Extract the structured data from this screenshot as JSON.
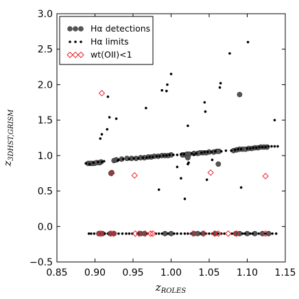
{
  "chart_data": {
    "type": "scatter",
    "xlabel": "z_ROLES",
    "ylabel": "z_3DHST,GRISM",
    "xlim": [
      0.85,
      1.15
    ],
    "ylim": [
      -0.5,
      3.0
    ],
    "xticks": [
      "0.85",
      "0.90",
      "0.95",
      "1.00",
      "1.05",
      "1.10",
      "1.15"
    ],
    "yticks": [
      "−0.5",
      "0.0",
      "0.5",
      "1.0",
      "1.5",
      "2.0",
      "2.5",
      "3.0"
    ],
    "legend_position": "top-left",
    "legend": [
      {
        "label": "Hα detections",
        "marker": "large-gray-dot"
      },
      {
        "label": "Hα limits",
        "marker": "small-black-dot"
      },
      {
        "label": "wt(OII)<1",
        "marker": "red-diamond"
      }
    ],
    "colors": {
      "detection": "#555555",
      "limit": "#000000",
      "flag": "#e8202a"
    },
    "series": [
      {
        "name": "Hα detections",
        "points": [
          [
            0.891,
            0.89
          ],
          [
            0.894,
            0.89
          ],
          [
            0.896,
            0.89
          ],
          [
            0.899,
            0.89
          ],
          [
            0.902,
            0.9
          ],
          [
            0.906,
            0.9
          ],
          [
            0.908,
            0.91
          ],
          [
            0.921,
            0.75
          ],
          [
            0.922,
            0.76
          ],
          [
            0.925,
            0.93
          ],
          [
            0.928,
            0.94
          ],
          [
            0.935,
            0.95
          ],
          [
            0.942,
            0.96
          ],
          [
            0.948,
            0.96
          ],
          [
            0.954,
            0.96
          ],
          [
            0.96,
            0.97
          ],
          [
            0.965,
            0.97
          ],
          [
            0.97,
            0.98
          ],
          [
            0.974,
            0.98
          ],
          [
            0.978,
            0.99
          ],
          [
            0.983,
            0.99
          ],
          [
            0.988,
            1.0
          ],
          [
            0.992,
            1.0
          ],
          [
            0.996,
            1.0
          ],
          [
            1.0,
            1.01
          ],
          [
            1.015,
            1.01
          ],
          [
            1.018,
            1.01
          ],
          [
            1.021,
            1.02
          ],
          [
            1.024,
            1.02
          ],
          [
            1.03,
            1.03
          ],
          [
            1.035,
            1.03
          ],
          [
            1.038,
            1.04
          ],
          [
            1.042,
            1.04
          ],
          [
            1.046,
            1.04
          ],
          [
            1.05,
            1.05
          ],
          [
            1.056,
            1.05
          ],
          [
            1.06,
            1.06
          ],
          [
            1.063,
            1.06
          ],
          [
            1.082,
            1.07
          ],
          [
            1.086,
            1.08
          ],
          [
            1.09,
            1.09
          ],
          [
            1.094,
            1.09
          ],
          [
            1.098,
            1.09
          ],
          [
            1.102,
            1.1
          ],
          [
            1.106,
            1.1
          ],
          [
            1.11,
            1.11
          ],
          [
            1.114,
            1.11
          ],
          [
            1.118,
            1.12
          ],
          [
            1.122,
            1.12
          ],
          [
            1.126,
            1.12
          ],
          [
            1.09,
            1.86
          ],
          [
            1.062,
            0.88
          ],
          [
            1.022,
            0.97
          ],
          [
            0.905,
            -0.1
          ],
          [
            0.91,
            -0.1
          ],
          [
            0.92,
            -0.1
          ],
          [
            0.925,
            -0.1
          ],
          [
            0.96,
            -0.1
          ],
          [
            0.965,
            -0.1
          ],
          [
            0.992,
            -0.1
          ],
          [
            1.0,
            -0.1
          ],
          [
            1.03,
            -0.1
          ],
          [
            1.035,
            -0.1
          ],
          [
            1.042,
            -0.1
          ],
          [
            1.058,
            -0.1
          ],
          [
            1.085,
            -0.1
          ],
          [
            1.09,
            -0.1
          ],
          [
            1.1,
            -0.1
          ],
          [
            1.11,
            -0.1
          ],
          [
            1.12,
            -0.1
          ],
          [
            1.128,
            -0.1
          ]
        ]
      },
      {
        "name": "Hα limits",
        "points": [
          [
            0.888,
            0.89
          ],
          [
            0.893,
            0.88
          ],
          [
            0.898,
            0.9
          ],
          [
            0.904,
            0.91
          ],
          [
            0.909,
            0.91
          ],
          [
            0.912,
            0.92
          ],
          [
            0.931,
            0.94
          ],
          [
            0.937,
            0.95
          ],
          [
            0.945,
            0.95
          ],
          [
            0.951,
            0.96
          ],
          [
            0.957,
            0.96
          ],
          [
            0.963,
            0.97
          ],
          [
            0.968,
            0.97
          ],
          [
            0.972,
            0.98
          ],
          [
            0.976,
            0.98
          ],
          [
            0.981,
            0.99
          ],
          [
            0.985,
            0.99
          ],
          [
            0.99,
            1.0
          ],
          [
            0.994,
            1.0
          ],
          [
            0.998,
            1.01
          ],
          [
            1.003,
            1.01
          ],
          [
            1.008,
            1.01
          ],
          [
            1.013,
            1.02
          ],
          [
            1.017,
            1.02
          ],
          [
            1.027,
            1.03
          ],
          [
            1.033,
            1.03
          ],
          [
            1.04,
            1.04
          ],
          [
            1.044,
            1.05
          ],
          [
            1.048,
            1.05
          ],
          [
            1.053,
            1.05
          ],
          [
            1.058,
            1.06
          ],
          [
            1.066,
            1.06
          ],
          [
            1.072,
            1.07
          ],
          [
            1.079,
            1.07
          ],
          [
            1.084,
            1.08
          ],
          [
            1.088,
            1.09
          ],
          [
            1.092,
            1.09
          ],
          [
            1.1,
            1.1
          ],
          [
            1.104,
            1.1
          ],
          [
            1.108,
            1.11
          ],
          [
            1.112,
            1.11
          ],
          [
            1.116,
            1.12
          ],
          [
            1.12,
            1.12
          ],
          [
            1.124,
            1.12
          ],
          [
            1.128,
            1.13
          ],
          [
            1.132,
            1.13
          ],
          [
            1.136,
            1.13
          ],
          [
            1.14,
            1.13
          ],
          [
            0.909,
            1.3
          ],
          [
            0.907,
            1.24
          ],
          [
            0.916,
            1.37
          ],
          [
            0.917,
            1.83
          ],
          [
            0.919,
            1.54
          ],
          [
            0.928,
            1.52
          ],
          [
            0.93,
            0.93
          ],
          [
            0.967,
            1.67
          ],
          [
            0.984,
            0.52
          ],
          [
            0.988,
            1.92
          ],
          [
            0.994,
            1.91
          ],
          [
            0.995,
            2.0
          ],
          [
            1.0,
            2.15
          ],
          [
            1.008,
            0.84
          ],
          [
            1.013,
            0.68
          ],
          [
            1.018,
            0.39
          ],
          [
            1.022,
            1.42
          ],
          [
            1.022,
            0.88
          ],
          [
            1.023,
            0.9
          ],
          [
            1.044,
            1.75
          ],
          [
            1.045,
            1.62
          ],
          [
            1.047,
            0.66
          ],
          [
            1.064,
            1.96
          ],
          [
            1.065,
            2.02
          ],
          [
            1.077,
            2.44
          ],
          [
            1.092,
            0.55
          ],
          [
            1.101,
            2.6
          ],
          [
            1.136,
            1.5
          ],
          [
            1.054,
            0.94
          ],
          [
            1.03,
            1.01
          ],
          [
            0.892,
            -0.1
          ],
          [
            0.895,
            -0.1
          ],
          [
            0.899,
            -0.1
          ],
          [
            0.913,
            -0.1
          ],
          [
            0.917,
            -0.1
          ],
          [
            0.931,
            -0.1
          ],
          [
            0.936,
            -0.1
          ],
          [
            0.941,
            -0.1
          ],
          [
            0.945,
            -0.1
          ],
          [
            0.949,
            -0.1
          ],
          [
            0.956,
            -0.1
          ],
          [
            0.969,
            -0.1
          ],
          [
            0.98,
            -0.1
          ],
          [
            0.984,
            -0.1
          ],
          [
            0.988,
            -0.1
          ],
          [
            0.996,
            -0.1
          ],
          [
            1.004,
            -0.1
          ],
          [
            1.008,
            -0.1
          ],
          [
            1.013,
            -0.1
          ],
          [
            1.018,
            -0.1
          ],
          [
            1.022,
            -0.1
          ],
          [
            1.026,
            -0.1
          ],
          [
            1.039,
            -0.1
          ],
          [
            1.046,
            -0.1
          ],
          [
            1.05,
            -0.1
          ],
          [
            1.054,
            -0.1
          ],
          [
            1.062,
            -0.1
          ],
          [
            1.066,
            -0.1
          ],
          [
            1.07,
            -0.1
          ],
          [
            1.08,
            -0.1
          ],
          [
            1.094,
            -0.1
          ],
          [
            1.097,
            -0.1
          ],
          [
            1.104,
            -0.1
          ],
          [
            1.107,
            -0.1
          ],
          [
            1.115,
            -0.1
          ],
          [
            1.124,
            -0.1
          ],
          [
            1.133,
            -0.1
          ],
          [
            1.138,
            -0.1
          ]
        ]
      },
      {
        "name": "wt(OII)<1",
        "points": [
          [
            0.909,
            1.88
          ],
          [
            0.922,
            0.75
          ],
          [
            0.952,
            0.72
          ],
          [
            1.052,
            0.76
          ],
          [
            1.124,
            0.71
          ],
          [
            0.906,
            -0.1
          ],
          [
            0.908,
            -0.1
          ],
          [
            0.921,
            -0.1
          ],
          [
            0.924,
            -0.1
          ],
          [
            0.953,
            -0.1
          ],
          [
            0.958,
            -0.1
          ],
          [
            0.966,
            -0.1
          ],
          [
            0.973,
            -0.1
          ],
          [
            0.976,
            -0.1
          ],
          [
            1.029,
            -0.1
          ],
          [
            1.043,
            -0.1
          ],
          [
            1.057,
            -0.1
          ],
          [
            1.062,
            -0.1
          ],
          [
            1.075,
            -0.1
          ],
          [
            1.086,
            -0.1
          ],
          [
            1.124,
            -0.1
          ]
        ]
      }
    ]
  }
}
